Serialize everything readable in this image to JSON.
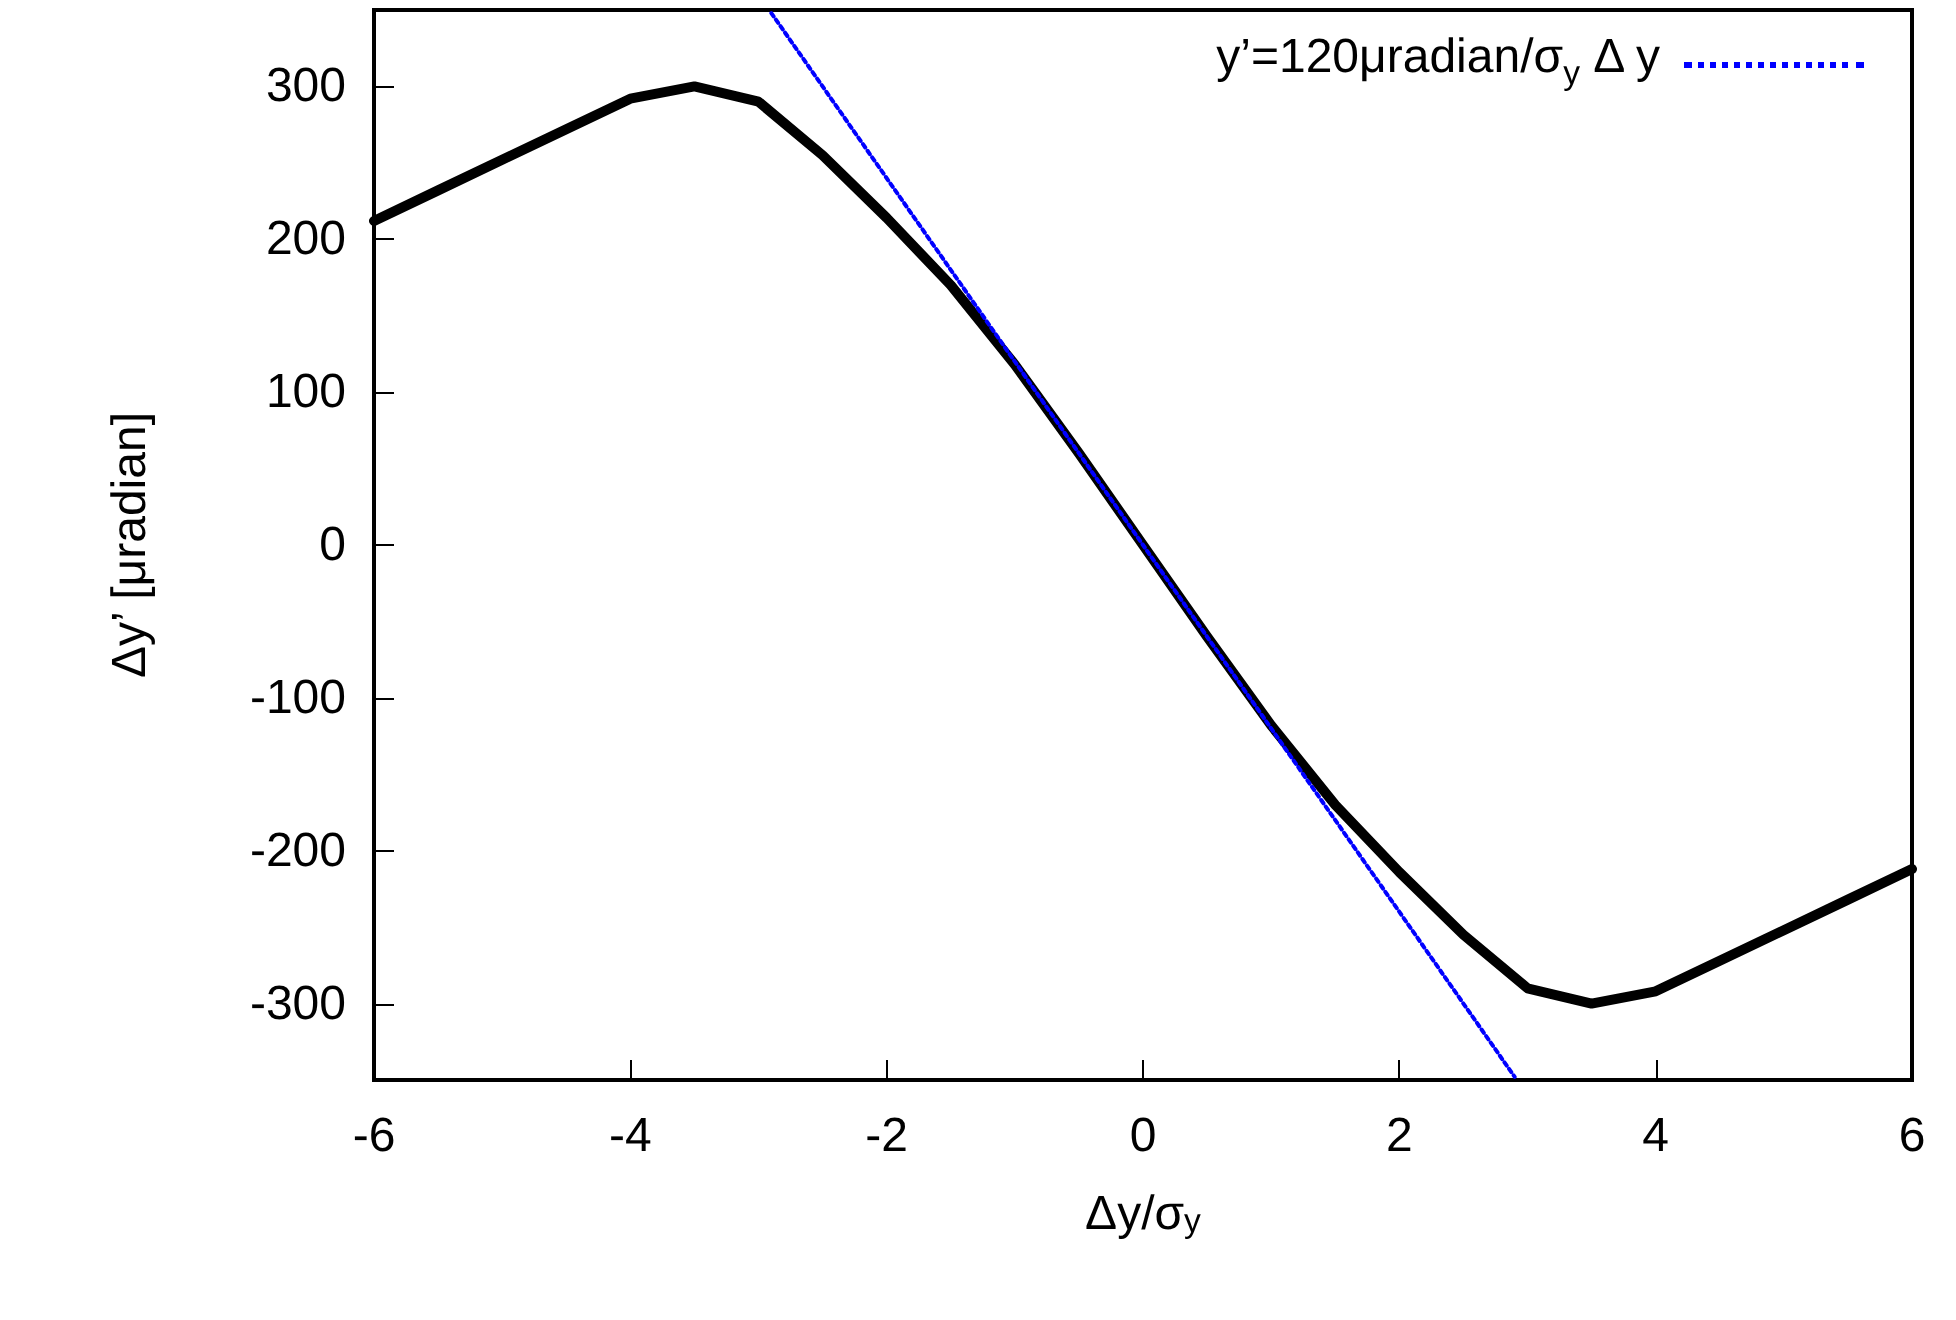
{
  "chart_data": {
    "type": "line",
    "xlabel": "Δy/σ$_{y}$",
    "ylabel": "Δy’ [μradian]",
    "xlim": [
      -6,
      6
    ],
    "xticks": [
      -6,
      -4,
      -2,
      0,
      2,
      4,
      6
    ],
    "ylim": [
      -350,
      350
    ],
    "yticks": [
      -300,
      -200,
      -100,
      0,
      100,
      200,
      300
    ],
    "grid": false,
    "legend": "top right",
    "marker": "none",
    "series": [
      {
        "color": "#000000",
        "line_style": "solid",
        "x": [
          -6,
          -5.5,
          -5,
          -4.5,
          -4,
          -3.5,
          -3,
          -2.5,
          -2,
          -1.5,
          -1,
          -0.5,
          0,
          0.5,
          1,
          1.5,
          2,
          2.5,
          3,
          3.5,
          4,
          4.5,
          5,
          5.5,
          6
        ],
        "values": [
          212,
          232,
          252,
          272,
          292,
          300,
          290,
          255,
          214,
          170,
          118,
          60,
          0,
          -60,
          -118,
          -170,
          -214,
          -255,
          -290,
          -300,
          -292,
          -272,
          -252,
          -232,
          -212
        ]
      },
      {
        "name": "y’=120μradian/σ$_{y}$ Δ y",
        "color": "#0000ff",
        "line_style": "dotted",
        "x": [
          -2.9,
          2.9
        ],
        "values": [
          348,
          -348
        ]
      }
    ]
  }
}
